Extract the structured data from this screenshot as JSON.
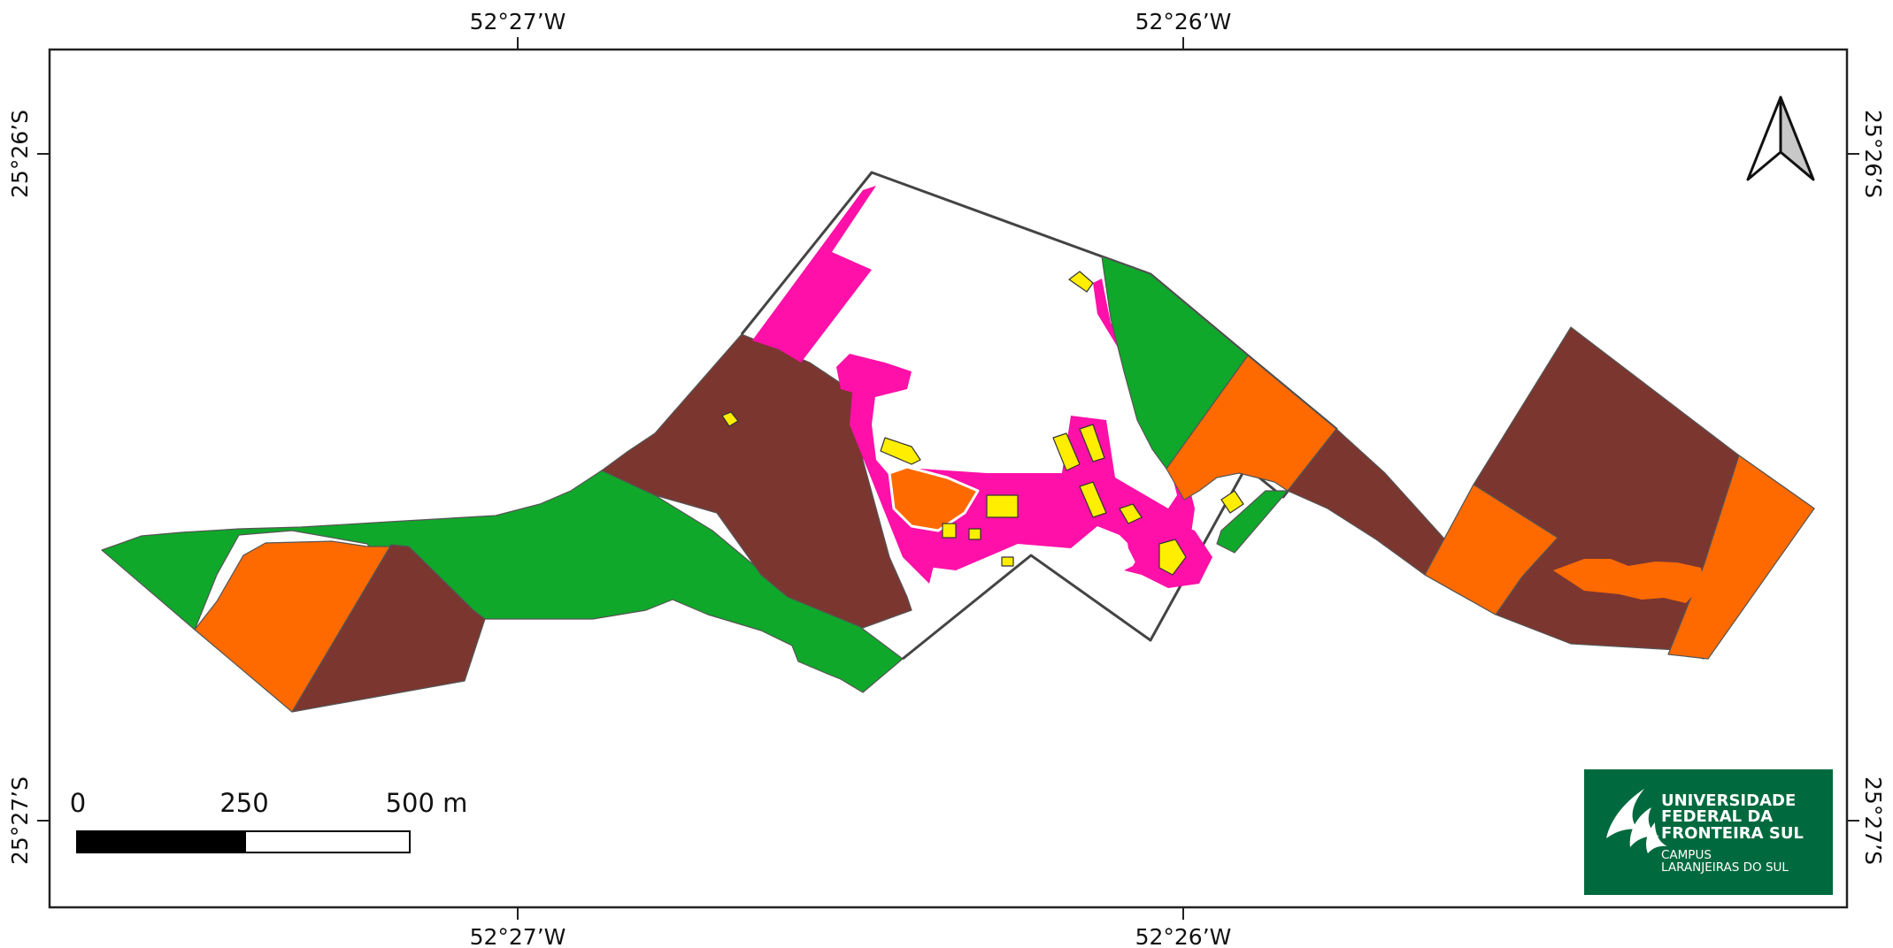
{
  "graticule": {
    "lon_left": "52°27’W",
    "lon_right": "52°26’W",
    "lat_top": "25°26’S",
    "lat_bottom": "25°27’S"
  },
  "scale_bar": {
    "labels": [
      "0",
      "250",
      "500 m"
    ]
  },
  "north_arrow": {
    "icon": "north-arrow-icon"
  },
  "logo": {
    "line1": "UNIVERSIDADE",
    "line2": "FEDERAL DA",
    "line3": "FRONTEIRA SUL",
    "line4": "CAMPUS",
    "line5": "LARANJEIRAS DO SUL",
    "color": "#006a3e"
  },
  "land_use_colors": {
    "forest": "#0fa82a",
    "pasture": "#7b3630",
    "crop": "#ff6a00",
    "built_area": "#ff10a8",
    "buildings": "#ffee00",
    "special": "#ff0000"
  }
}
